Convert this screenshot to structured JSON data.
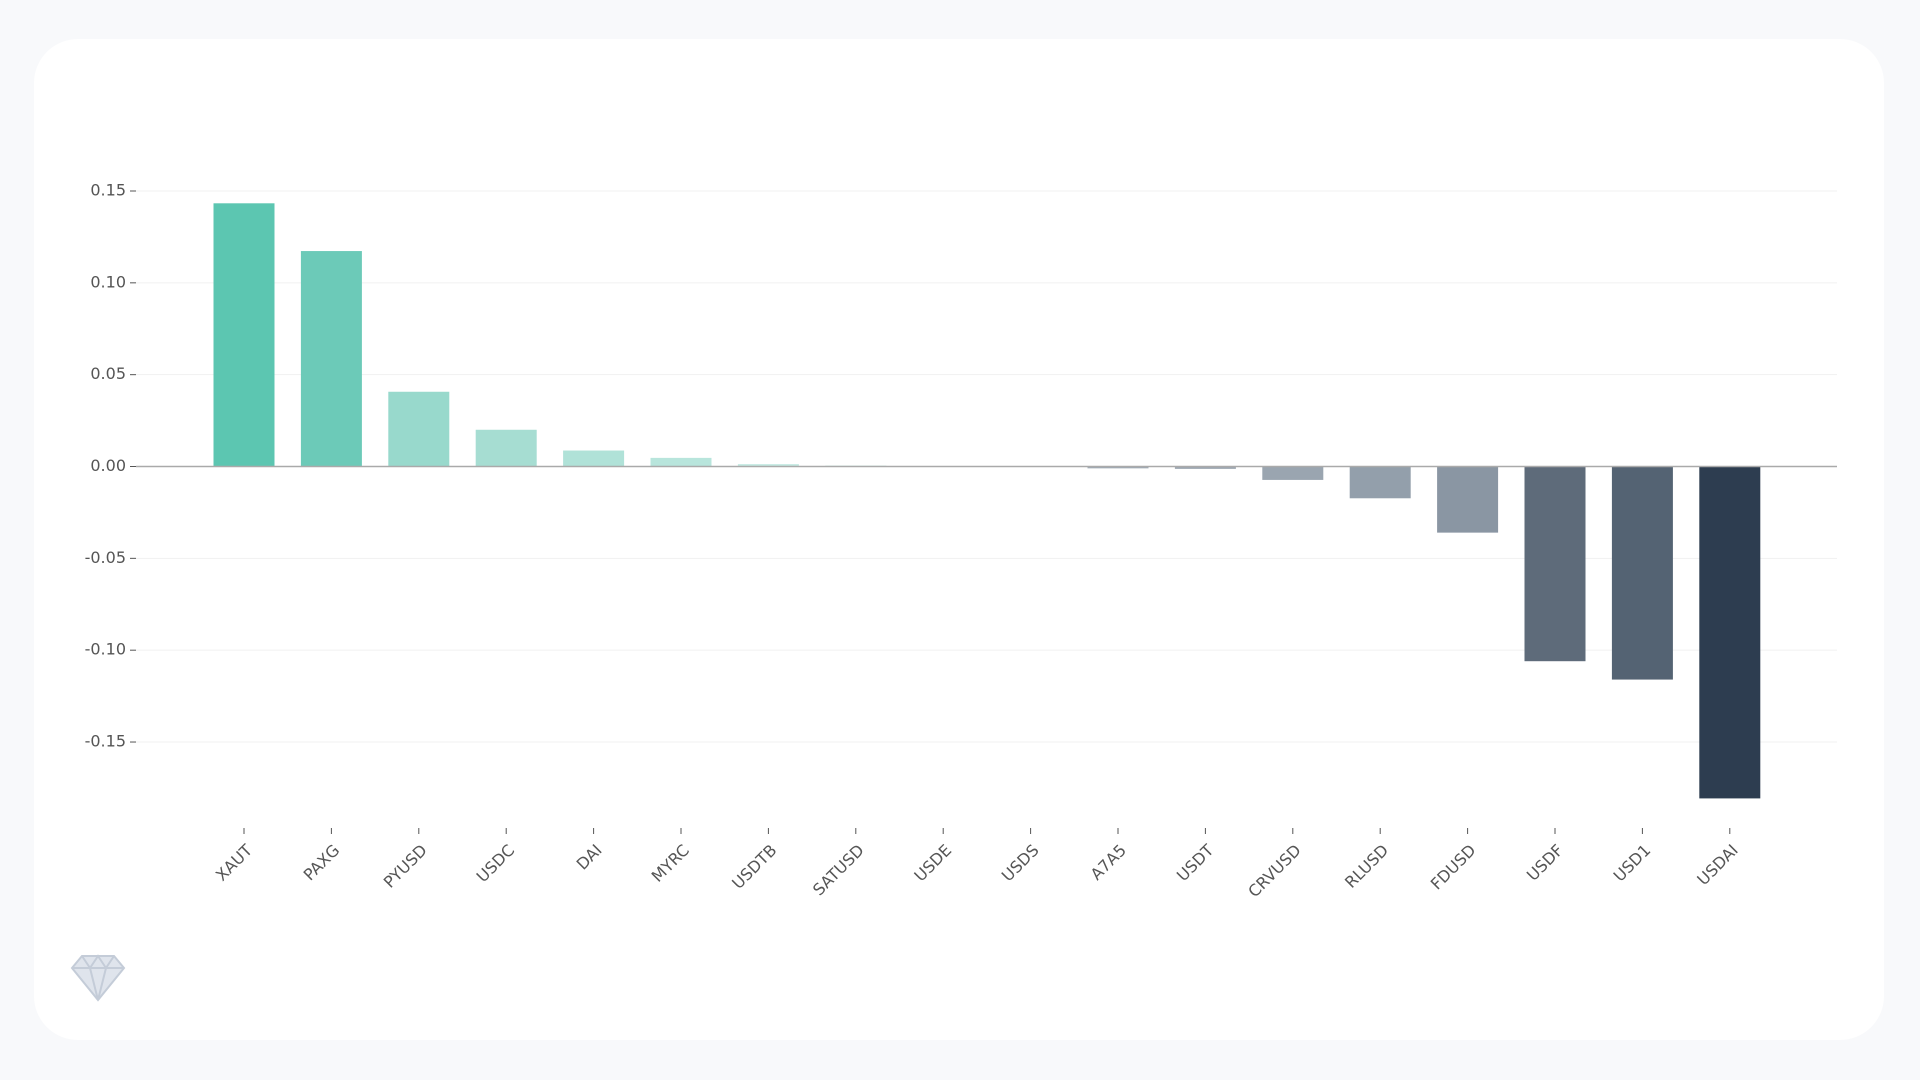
{
  "chart_data": {
    "type": "bar",
    "categories": [
      "XAUT",
      "PAXG",
      "PYUSD",
      "USDC",
      "DAI",
      "MYRC",
      "USDTB",
      "SATUSD",
      "USDE",
      "USDS",
      "A7A5",
      "USDT",
      "CRVUSD",
      "RLUSD",
      "FDUSD",
      "USDF",
      "USD1",
      "USDAI"
    ],
    "values": [
      0.1433,
      0.1173,
      0.0407,
      0.02,
      0.0087,
      0.0047,
      0.0013,
      0.0005,
      0.0001,
      0,
      -0.001,
      -0.0013,
      -0.0073,
      -0.0173,
      -0.036,
      -0.106,
      -0.116,
      -0.1807
    ],
    "colors": [
      "#5cc6b1",
      "#6ccab8",
      "#98d9cc",
      "#a6ddd2",
      "#b0e2d8",
      "#b8e5dc",
      "#c4eae2",
      "#cdeee7",
      "#d5f1eb",
      "#dde3e8",
      "#a0aab4",
      "#9ea8b2",
      "#9aa5b0",
      "#939fab",
      "#8a96a3",
      "#5e6b7a",
      "#546373",
      "#2d3d50"
    ],
    "ylim": [
      -0.193,
      0.158
    ],
    "yticks": [
      -0.15,
      {
        "value": -0.1,
        "label": "-0.10"
      },
      -0.05,
      {
        "value": 0,
        "label": "0.00"
      },
      0.05,
      {
        "value": 0.1,
        "label": "0.10"
      },
      0.15
    ],
    "grid": true
  }
}
